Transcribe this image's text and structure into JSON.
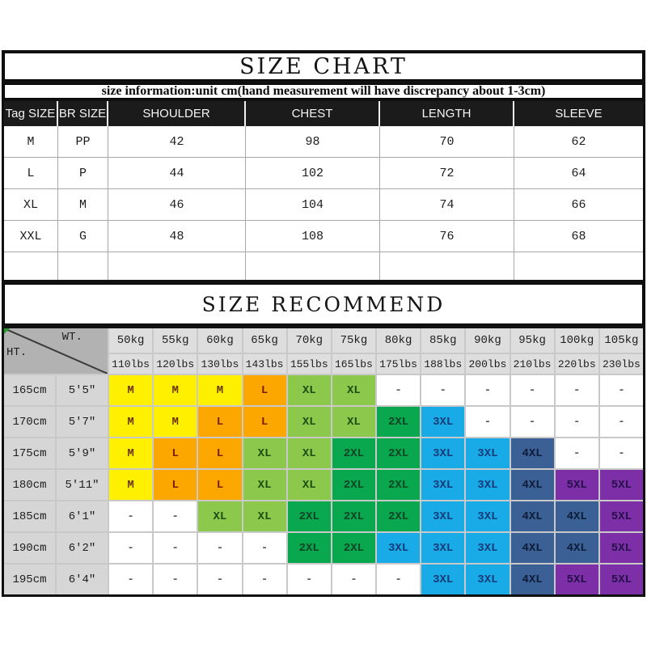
{
  "header": {
    "title": "SIZE CHART",
    "subtitle": "size information:unit cm(hand measurement will have discrepancy about 1-3cm)"
  },
  "size_chart": {
    "columns": [
      "Tag SIZE",
      "BR SIZE",
      "SHOULDER",
      "CHEST",
      "LENGTH",
      "SLEEVE"
    ],
    "rows": [
      [
        "M",
        "PP",
        "42",
        "98",
        "70",
        "62"
      ],
      [
        "L",
        "P",
        "44",
        "102",
        "72",
        "64"
      ],
      [
        "XL",
        "M",
        "46",
        "104",
        "74",
        "66"
      ],
      [
        "XXL",
        "G",
        "48",
        "108",
        "76",
        "68"
      ],
      [
        "",
        "",
        "",
        "",
        "",
        ""
      ]
    ]
  },
  "recommend": {
    "title": "SIZE RECOMMEND",
    "corner": {
      "top": "WT.",
      "bottom": "HT."
    },
    "weights_kg": [
      "50kg",
      "55kg",
      "60kg",
      "65kg",
      "70kg",
      "75kg",
      "80kg",
      "85kg",
      "90kg",
      "95kg",
      "100kg",
      "105kg"
    ],
    "weights_lbs": [
      "110lbs",
      "120lbs",
      "130lbs",
      "143lbs",
      "155lbs",
      "165lbs",
      "175lbs",
      "188lbs",
      "200lbs",
      "210lbs",
      "220lbs",
      "230lbs"
    ],
    "palette": {
      "y": {
        "bg": "#FFF000",
        "fg": "#6a3300"
      },
      "o": {
        "bg": "#FBA700",
        "fg": "#7a2000"
      },
      "lg": {
        "bg": "#8CC84B",
        "fg": "#1d4d12"
      },
      "g": {
        "bg": "#09A74E",
        "fg": "#0b4526"
      },
      "c": {
        "bg": "#18ABE8",
        "fg": "#173a78"
      },
      "n": {
        "bg": "#3A6096",
        "fg": "#0e1c38"
      },
      "p": {
        "bg": "#7C2FA6",
        "fg": "#26104a"
      },
      "w": {
        "bg": "#FFFFFF",
        "fg": "#5c5c5c"
      }
    },
    "heights": [
      {
        "cm": "165cm",
        "ft": "5'5\"",
        "cells": [
          {
            "t": "M",
            "c": "y"
          },
          {
            "t": "M",
            "c": "y"
          },
          {
            "t": "M",
            "c": "y"
          },
          {
            "t": "L",
            "c": "o"
          },
          {
            "t": "XL",
            "c": "lg"
          },
          {
            "t": "XL",
            "c": "lg"
          },
          {
            "t": "-",
            "c": "w"
          },
          {
            "t": "-",
            "c": "w"
          },
          {
            "t": "-",
            "c": "w"
          },
          {
            "t": "-",
            "c": "w"
          },
          {
            "t": "-",
            "c": "w"
          },
          {
            "t": "-",
            "c": "w"
          }
        ]
      },
      {
        "cm": "170cm",
        "ft": "5'7\"",
        "cells": [
          {
            "t": "M",
            "c": "y"
          },
          {
            "t": "M",
            "c": "y"
          },
          {
            "t": "L",
            "c": "o"
          },
          {
            "t": "L",
            "c": "o"
          },
          {
            "t": "XL",
            "c": "lg"
          },
          {
            "t": "XL",
            "c": "lg"
          },
          {
            "t": "2XL",
            "c": "g"
          },
          {
            "t": "3XL",
            "c": "c"
          },
          {
            "t": "-",
            "c": "w"
          },
          {
            "t": "-",
            "c": "w"
          },
          {
            "t": "-",
            "c": "w"
          },
          {
            "t": "-",
            "c": "w"
          }
        ]
      },
      {
        "cm": "175cm",
        "ft": "5'9\"",
        "cells": [
          {
            "t": "M",
            "c": "y"
          },
          {
            "t": "L",
            "c": "o"
          },
          {
            "t": "L",
            "c": "o"
          },
          {
            "t": "XL",
            "c": "lg"
          },
          {
            "t": "XL",
            "c": "lg"
          },
          {
            "t": "2XL",
            "c": "g"
          },
          {
            "t": "2XL",
            "c": "g"
          },
          {
            "t": "3XL",
            "c": "c"
          },
          {
            "t": "3XL",
            "c": "c"
          },
          {
            "t": "4XL",
            "c": "n"
          },
          {
            "t": "-",
            "c": "w"
          },
          {
            "t": "-",
            "c": "w"
          }
        ]
      },
      {
        "cm": "180cm",
        "ft": "5'11\"",
        "cells": [
          {
            "t": "M",
            "c": "y"
          },
          {
            "t": "L",
            "c": "o"
          },
          {
            "t": "L",
            "c": "o"
          },
          {
            "t": "XL",
            "c": "lg"
          },
          {
            "t": "XL",
            "c": "lg"
          },
          {
            "t": "2XL",
            "c": "g"
          },
          {
            "t": "2XL",
            "c": "g"
          },
          {
            "t": "3XL",
            "c": "c"
          },
          {
            "t": "3XL",
            "c": "c"
          },
          {
            "t": "4XL",
            "c": "n"
          },
          {
            "t": "5XL",
            "c": "p"
          },
          {
            "t": "5XL",
            "c": "p"
          }
        ]
      },
      {
        "cm": "185cm",
        "ft": "6'1\"",
        "cells": [
          {
            "t": "-",
            "c": "w"
          },
          {
            "t": "-",
            "c": "w"
          },
          {
            "t": "XL",
            "c": "lg"
          },
          {
            "t": "XL",
            "c": "lg"
          },
          {
            "t": "2XL",
            "c": "g"
          },
          {
            "t": "2XL",
            "c": "g"
          },
          {
            "t": "2XL",
            "c": "g"
          },
          {
            "t": "3XL",
            "c": "c"
          },
          {
            "t": "3XL",
            "c": "c"
          },
          {
            "t": "4XL",
            "c": "n"
          },
          {
            "t": "4XL",
            "c": "n"
          },
          {
            "t": "5XL",
            "c": "p"
          }
        ]
      },
      {
        "cm": "190cm",
        "ft": "6'2\"",
        "cells": [
          {
            "t": "-",
            "c": "w"
          },
          {
            "t": "-",
            "c": "w"
          },
          {
            "t": "-",
            "c": "w"
          },
          {
            "t": "-",
            "c": "w"
          },
          {
            "t": "2XL",
            "c": "g"
          },
          {
            "t": "2XL",
            "c": "g"
          },
          {
            "t": "3XL",
            "c": "c"
          },
          {
            "t": "3XL",
            "c": "c"
          },
          {
            "t": "3XL",
            "c": "c"
          },
          {
            "t": "4XL",
            "c": "n"
          },
          {
            "t": "4XL",
            "c": "n"
          },
          {
            "t": "5XL",
            "c": "p"
          }
        ]
      },
      {
        "cm": "195cm",
        "ft": "6'4\"",
        "cells": [
          {
            "t": "-",
            "c": "w"
          },
          {
            "t": "-",
            "c": "w"
          },
          {
            "t": "-",
            "c": "w"
          },
          {
            "t": "-",
            "c": "w"
          },
          {
            "t": "-",
            "c": "w"
          },
          {
            "t": "-",
            "c": "w"
          },
          {
            "t": "-",
            "c": "w"
          },
          {
            "t": "3XL",
            "c": "c"
          },
          {
            "t": "3XL",
            "c": "c"
          },
          {
            "t": "4XL",
            "c": "n"
          },
          {
            "t": "5XL",
            "c": "p"
          },
          {
            "t": "5XL",
            "c": "p"
          }
        ]
      }
    ]
  }
}
